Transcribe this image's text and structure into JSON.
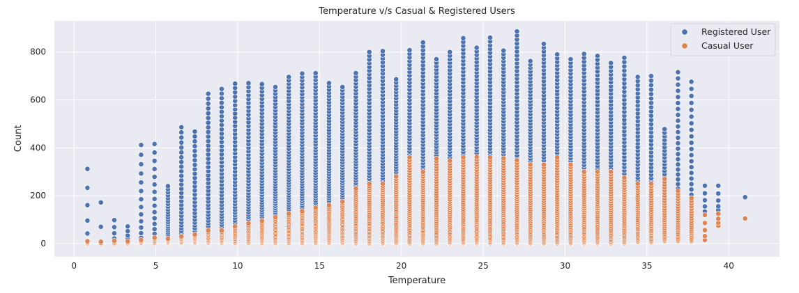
{
  "chart_data": {
    "type": "scatter",
    "title": "Temperature v/s Casual & Registered Users",
    "xlabel": "Temperature",
    "ylabel": "Count",
    "xlim": [
      -1.2,
      43.1
    ],
    "ylim": [
      -55,
      930
    ],
    "xticks": [
      0,
      5,
      10,
      15,
      20,
      25,
      30,
      35,
      40
    ],
    "yticks": [
      0,
      200,
      400,
      600,
      800
    ],
    "grid": true,
    "background": "#EAEAF2",
    "legend_position": "top-right",
    "series": [
      {
        "name": "Registered User",
        "color": "#4C72B0",
        "temps": [
          0.82,
          1.64,
          2.46,
          3.28,
          4.1,
          4.92,
          5.74,
          6.56,
          7.38,
          8.2,
          9.02,
          9.84,
          10.66,
          11.48,
          12.3,
          13.12,
          13.94,
          14.76,
          15.58,
          16.4,
          17.22,
          18.04,
          18.86,
          19.68,
          20.5,
          21.32,
          22.14,
          22.96,
          23.78,
          24.6,
          25.42,
          26.24,
          27.06,
          27.88,
          28.7,
          29.52,
          30.34,
          31.16,
          31.98,
          32.8,
          33.62,
          34.44,
          35.26,
          36.08,
          36.9,
          37.72,
          38.54,
          39.36,
          41.0
        ],
        "max": [
          312,
          172,
          98,
          72,
          412,
          416,
          240,
          486,
          468,
          626,
          646,
          668,
          670,
          666,
          654,
          696,
          710,
          712,
          670,
          654,
          712,
          800,
          804,
          686,
          808,
          840,
          770,
          800,
          858,
          818,
          860,
          806,
          886,
          762,
          834,
          790,
          770,
          792,
          784,
          754,
          776,
          696,
          700,
          478,
          716,
          676,
          242,
          242,
          194
        ],
        "min": [
          8,
          5,
          8,
          10,
          12,
          15,
          18,
          20,
          22,
          25,
          25,
          28,
          30,
          30,
          32,
          34,
          34,
          35,
          36,
          36,
          38,
          38,
          40,
          40,
          40,
          42,
          42,
          44,
          44,
          44,
          44,
          44,
          44,
          44,
          42,
          42,
          40,
          40,
          38,
          38,
          36,
          36,
          34,
          32,
          30,
          30,
          120,
          140,
          194
        ],
        "count": [
          6,
          3,
          5,
          5,
          14,
          16,
          24,
          30,
          30,
          40,
          44,
          48,
          52,
          56,
          60,
          62,
          64,
          64,
          64,
          62,
          64,
          66,
          66,
          66,
          68,
          68,
          68,
          68,
          70,
          70,
          70,
          70,
          68,
          68,
          68,
          66,
          66,
          64,
          62,
          60,
          56,
          52,
          48,
          40,
          36,
          30,
          6,
          5,
          1
        ]
      },
      {
        "name": "Casual User",
        "color": "#DD8452",
        "temps": [
          0.82,
          1.64,
          2.46,
          3.28,
          4.1,
          4.92,
          5.74,
          6.56,
          7.38,
          8.2,
          9.02,
          9.84,
          10.66,
          11.48,
          12.3,
          13.12,
          13.94,
          14.76,
          15.58,
          16.4,
          17.22,
          18.04,
          18.86,
          19.68,
          20.5,
          21.32,
          22.14,
          22.96,
          23.78,
          24.6,
          25.42,
          26.24,
          27.06,
          27.88,
          28.7,
          29.52,
          30.34,
          31.16,
          31.98,
          32.8,
          33.62,
          34.44,
          35.26,
          36.08,
          36.9,
          37.72,
          38.54,
          39.36,
          41.0
        ],
        "max": [
          10,
          8,
          12,
          10,
          15,
          25,
          20,
          30,
          38,
          55,
          55,
          72,
          85,
          95,
          110,
          125,
          135,
          150,
          160,
          175,
          230,
          250,
          250,
          280,
          360,
          300,
          355,
          345,
          360,
          362,
          360,
          356,
          348,
          330,
          330,
          360,
          330,
          300,
          300,
          300,
          275,
          250,
          250,
          270,
          220,
          190,
          120,
          125,
          105
        ],
        "min": [
          0,
          0,
          0,
          0,
          0,
          0,
          0,
          0,
          0,
          0,
          0,
          0,
          0,
          0,
          0,
          0,
          0,
          0,
          0,
          0,
          0,
          0,
          0,
          0,
          0,
          0,
          0,
          0,
          0,
          0,
          0,
          0,
          0,
          0,
          0,
          0,
          0,
          0,
          0,
          0,
          0,
          5,
          5,
          10,
          10,
          10,
          15,
          75,
          105
        ],
        "count": [
          4,
          3,
          4,
          4,
          6,
          8,
          8,
          10,
          12,
          14,
          14,
          16,
          18,
          20,
          22,
          24,
          26,
          28,
          30,
          32,
          36,
          38,
          38,
          40,
          44,
          42,
          44,
          44,
          46,
          46,
          46,
          46,
          44,
          42,
          42,
          44,
          42,
          40,
          40,
          38,
          36,
          34,
          32,
          30,
          26,
          22,
          5,
          4,
          1
        ]
      }
    ]
  }
}
